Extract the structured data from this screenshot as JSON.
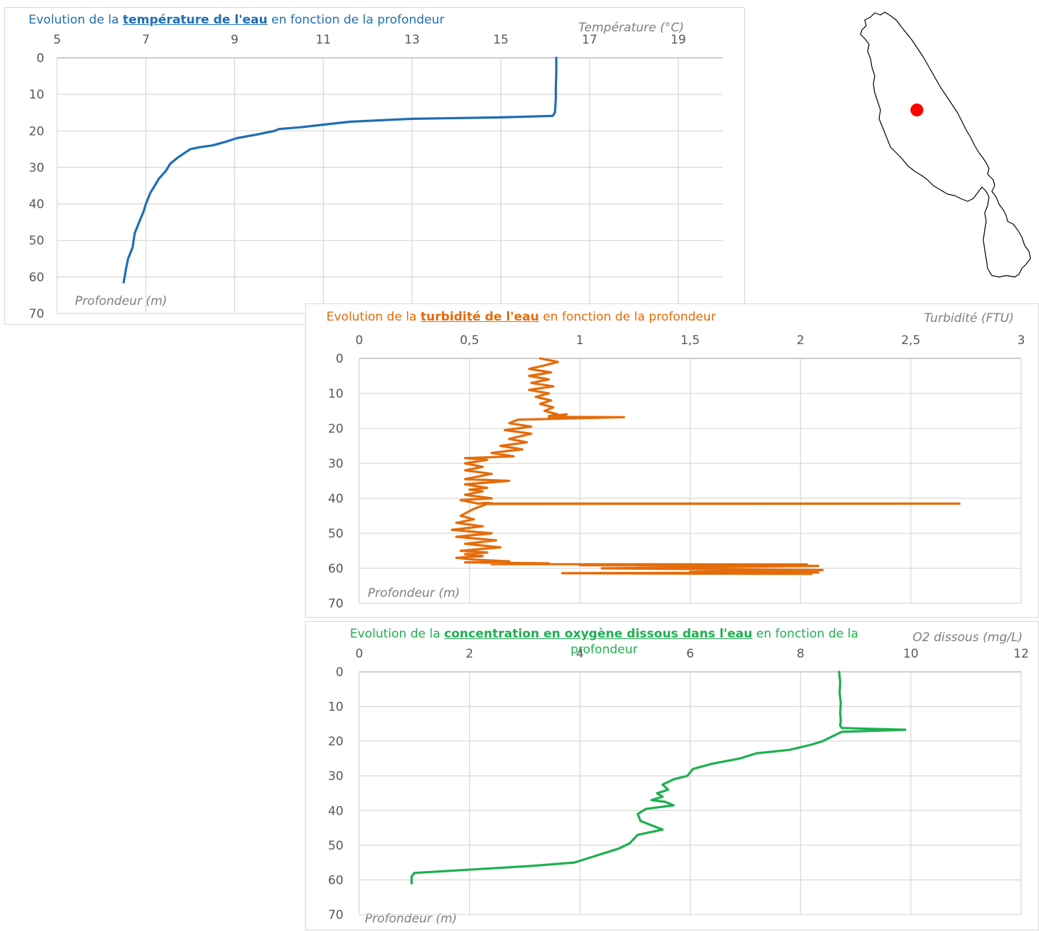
{
  "colors": {
    "temperature": "#1f6fb4",
    "turbidity": "#e46c0a",
    "oxygen": "#1eb050",
    "grid": "#d9d9d9",
    "axis_text": "#595959",
    "map_dot": "#ff0000"
  },
  "chart_data": [
    {
      "type": "line",
      "title": {
        "prefix": "Evolution de la ",
        "emphasis": "température de l'eau",
        "suffix": " en fonction de la profondeur"
      },
      "xlabel": "Température (°C)",
      "ylabel": "Profondeur (m)",
      "xlim": [
        5,
        20
      ],
      "xticks": [
        5,
        7,
        9,
        11,
        13,
        15,
        17,
        19
      ],
      "xtick_labels": [
        "5",
        "7",
        "9",
        "11",
        "13",
        "15",
        "17",
        "19"
      ],
      "ylim": [
        0,
        70
      ],
      "yticks": [
        0,
        10,
        20,
        30,
        40,
        50,
        60,
        70
      ],
      "y_reversed": true,
      "x_axis_position": "top",
      "series": [
        {
          "x": [
            16.25,
            16.25,
            16.24,
            16.24,
            16.23,
            16.22,
            16.17,
            15.0,
            13.0,
            11.6,
            11.0,
            10.5,
            10.0,
            9.9,
            9.5,
            9.05,
            8.8,
            8.5,
            8.2,
            8.0,
            7.7,
            7.55,
            7.5,
            7.45,
            7.3,
            7.2,
            7.1,
            7.0,
            6.95,
            6.85,
            6.75,
            6.7,
            6.6,
            6.55,
            6.5
          ],
          "y": [
            0,
            4,
            8,
            11,
            13,
            15,
            15.9,
            16.3,
            16.7,
            17.5,
            18.3,
            19,
            19.5,
            20,
            21,
            22,
            23,
            24,
            24.5,
            25,
            27.5,
            29,
            30,
            31,
            33,
            35,
            37,
            40,
            42,
            45,
            48,
            52,
            55,
            58,
            61.5
          ]
        }
      ]
    },
    {
      "type": "line",
      "title": {
        "prefix": "Evolution de la ",
        "emphasis": "turbidité de l'eau",
        "suffix": " en fonction de la profondeur"
      },
      "xlabel": "Turbidité (FTU)",
      "ylabel": "Profondeur (m)",
      "xlim": [
        0,
        3
      ],
      "xticks": [
        0,
        0.5,
        1,
        1.5,
        2,
        2.5,
        3
      ],
      "xtick_labels": [
        "0",
        "0,5",
        "1",
        "1,5",
        "2",
        "2,5",
        "3"
      ],
      "ylim": [
        0,
        70
      ],
      "yticks": [
        0,
        10,
        20,
        30,
        40,
        50,
        60,
        70
      ],
      "y_reversed": true,
      "x_axis_position": "top",
      "series": [
        {
          "x": [
            0.82,
            0.9,
            0.84,
            0.77,
            0.87,
            0.77,
            0.86,
            0.78,
            0.88,
            0.77,
            0.86,
            0.8,
            0.87,
            0.82,
            0.88,
            0.84,
            0.9,
            0.86,
            0.92,
            0.88,
            0.94,
            0.86,
            0.9,
            0.86,
            1.2,
            0.72,
            0.68,
            0.78,
            0.66,
            0.78,
            0.68,
            0.76,
            0.64,
            0.74,
            0.6,
            0.7,
            0.48,
            0.58,
            0.48,
            0.56,
            0.48,
            0.6,
            0.48,
            0.68,
            0.48,
            0.58,
            0.5,
            0.56,
            0.48,
            0.6,
            0.46,
            0.5,
            0.54,
            0.58,
            0.6,
            0.56,
            2.72,
            0.58,
            0.52,
            0.46,
            0.52,
            0.44,
            0.56,
            0.42,
            0.6,
            0.44,
            0.62,
            0.48,
            0.64,
            0.46,
            0.58,
            0.48,
            0.56,
            0.44,
            0.52,
            0.68,
            0.48,
            0.86,
            0.6,
            2.03,
            1.0,
            2.08,
            1.1,
            2.1,
            1.5,
            2.08,
            0.92,
            2.05
          ],
          "y": [
            0,
            1,
            2,
            3,
            4,
            5,
            6,
            7,
            8,
            9,
            10,
            11,
            12,
            13,
            14,
            15,
            16,
            16.5,
            17,
            16.5,
            16,
            16.5,
            16.6,
            16.7,
            16.8,
            17.5,
            18.5,
            19.5,
            20.5,
            21.5,
            23,
            24,
            25,
            26,
            27,
            28,
            28.5,
            29,
            30,
            31,
            32,
            33,
            34.5,
            35,
            36,
            37,
            37.5,
            38,
            39,
            40,
            40.5,
            41,
            41.5,
            41.3,
            41.4,
            41.5,
            41.5,
            41.6,
            43,
            45,
            46,
            47,
            48,
            49,
            50,
            51,
            52,
            53,
            54,
            55,
            55.5,
            56,
            56.5,
            57,
            57.5,
            58,
            58.3,
            58.6,
            58.8,
            58.9,
            59.1,
            59.3,
            60,
            60.5,
            61,
            61.2,
            61.4,
            61.6
          ]
        }
      ]
    },
    {
      "type": "line",
      "title": {
        "prefix": "Evolution de la ",
        "emphasis": "concentration en oxygène dissous dans l'eau",
        "suffix": " en fonction de la profondeur"
      },
      "xlabel": "O2 dissous (mg/L)",
      "ylabel": "Profondeur (m)",
      "xlim": [
        0,
        12
      ],
      "xticks": [
        0,
        2,
        4,
        6,
        8,
        10,
        12
      ],
      "xtick_labels": [
        "0",
        "2",
        "4",
        "6",
        "8",
        "10",
        "12"
      ],
      "ylim": [
        0,
        70
      ],
      "yticks": [
        0,
        10,
        20,
        30,
        40,
        50,
        60,
        70
      ],
      "y_reversed": true,
      "x_axis_position": "top",
      "series": [
        {
          "x": [
            8.7,
            8.72,
            8.71,
            8.73,
            8.72,
            8.73,
            8.72,
            8.75,
            9.9,
            8.75,
            8.4,
            8.2,
            7.8,
            7.2,
            6.9,
            6.4,
            6.05,
            6.0,
            5.95,
            5.7,
            5.5,
            5.6,
            5.4,
            5.5,
            5.3,
            5.55,
            5.7,
            5.2,
            5.05,
            5.1,
            5.5,
            5.05,
            4.9,
            4.7,
            4.3,
            3.9,
            3.1,
            1.0,
            0.95,
            0.95
          ],
          "y": [
            0,
            3,
            6,
            9,
            12,
            14,
            15.5,
            16.2,
            16.7,
            17.3,
            20,
            21,
            22.5,
            23.5,
            25,
            26.5,
            28,
            29,
            30,
            31,
            32.5,
            34,
            35,
            36,
            37,
            37.5,
            38.5,
            39.5,
            41,
            43,
            45.5,
            47,
            49.5,
            51,
            53,
            55,
            56,
            58,
            59,
            61
          ]
        }
      ]
    }
  ]
}
